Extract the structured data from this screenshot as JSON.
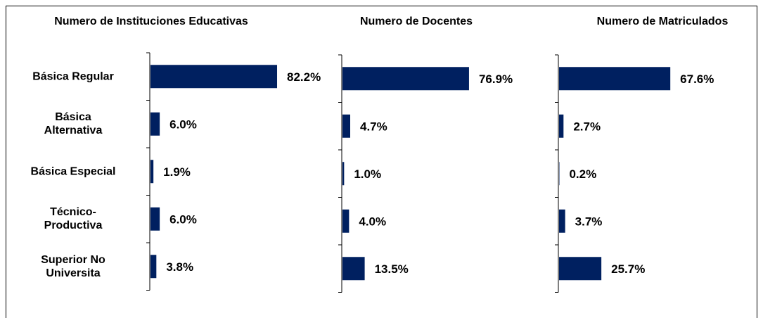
{
  "chart_data": [
    {
      "type": "bar",
      "orientation": "horizontal",
      "title": "Numero de Instituciones Educativas",
      "color": "#002060",
      "categories": [
        "Básica Regular",
        "Básica\nAlternativa",
        "Básica Especial",
        "Técnico-\nProductiva",
        "Superior No\nUniversita"
      ],
      "values": [
        82.2,
        6.0,
        1.9,
        6.0,
        3.8
      ],
      "value_labels": [
        "82.2%",
        "6.0%",
        "1.9%",
        "6.0%",
        "3.8%"
      ]
    },
    {
      "type": "bar",
      "orientation": "horizontal",
      "title": "Numero de Docentes",
      "color": "#002060",
      "values": [
        76.9,
        4.7,
        1.0,
        4.0,
        13.5
      ],
      "value_labels": [
        "76.9%",
        "4.7%",
        "1.0%",
        "4.0%",
        "13.5%"
      ]
    },
    {
      "type": "bar",
      "orientation": "horizontal",
      "title": "Numero de Matriculados",
      "color": "#002060",
      "values": [
        67.6,
        2.7,
        0.2,
        3.7,
        25.7
      ],
      "value_labels": [
        "67.6%",
        "2.7%",
        "0.2%",
        "3.7%",
        "25.7%"
      ]
    }
  ]
}
